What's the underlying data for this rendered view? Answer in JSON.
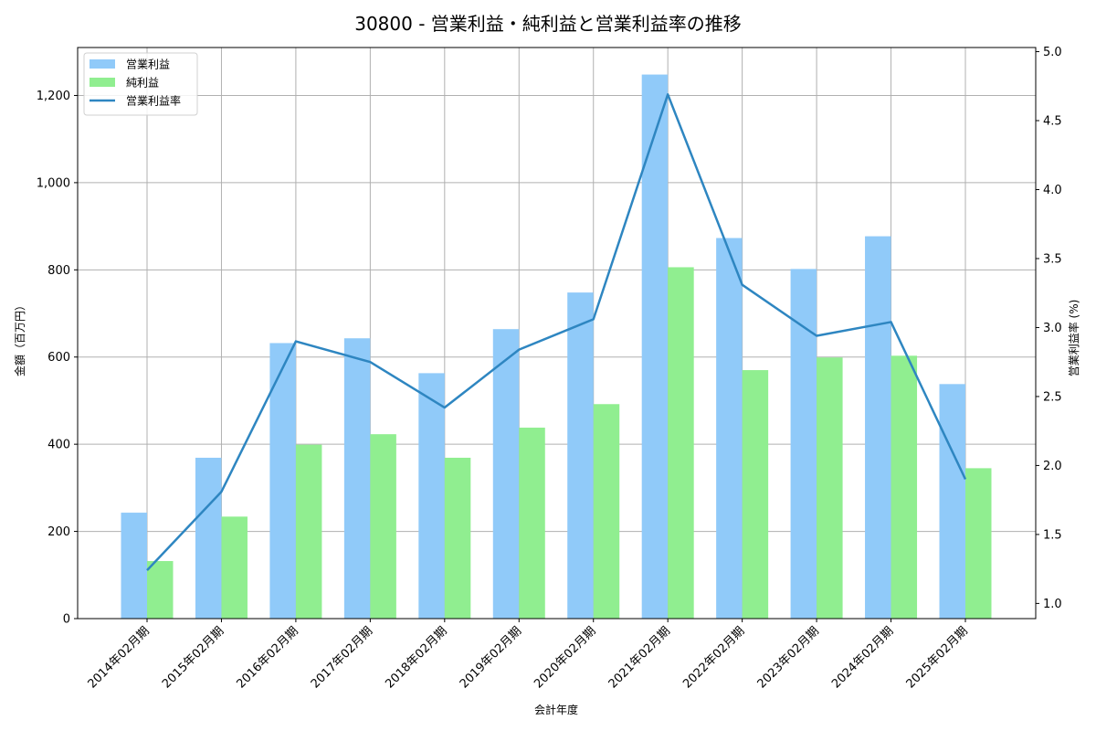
{
  "chart_data": {
    "type": "bar",
    "title": "30800 - 営業利益・純利益と営業利益率の推移",
    "xlabel": "会計年度",
    "ylabel": "金額（百万円）",
    "y2label": "営業利益率 (%)",
    "categories": [
      "2014年02月期",
      "2015年02月期",
      "2016年02月期",
      "2017年02月期",
      "2018年02月期",
      "2019年02月期",
      "2020年02月期",
      "2021年02月期",
      "2022年02月期",
      "2023年02月期",
      "2024年02月期",
      "2025年02月期"
    ],
    "series": [
      {
        "name": "営業利益",
        "type": "bar",
        "axis": "left",
        "color": "#90CAF9",
        "values": [
          243,
          369,
          632,
          643,
          563,
          664,
          748,
          1248,
          873,
          802,
          877,
          538
        ]
      },
      {
        "name": "純利益",
        "type": "bar",
        "axis": "left",
        "color": "#90EE90",
        "values": [
          132,
          234,
          399,
          423,
          369,
          438,
          492,
          806,
          570,
          599,
          603,
          345
        ]
      },
      {
        "name": "営業利益率",
        "type": "line",
        "axis": "right",
        "color": "#2E86C1",
        "values": [
          1.24,
          1.81,
          2.9,
          2.75,
          2.42,
          2.84,
          3.06,
          4.69,
          3.31,
          2.94,
          3.04,
          1.9
        ]
      }
    ],
    "ylim": [
      0,
      1310
    ],
    "y2lim": [
      0.89,
      5.03
    ],
    "yticks": [
      0,
      200,
      400,
      600,
      800,
      1000,
      1200
    ],
    "ytick_labels": [
      "0",
      "200",
      "400",
      "600",
      "800",
      "1,000",
      "1,200"
    ],
    "y2ticks": [
      1.0,
      1.5,
      2.0,
      2.5,
      3.0,
      3.5,
      4.0,
      4.5,
      5.0
    ],
    "y2tick_labels": [
      "1.0",
      "1.5",
      "2.0",
      "2.5",
      "3.0",
      "3.5",
      "4.0",
      "4.5",
      "5.0"
    ],
    "grid": true,
    "legend_position": "upper left"
  }
}
